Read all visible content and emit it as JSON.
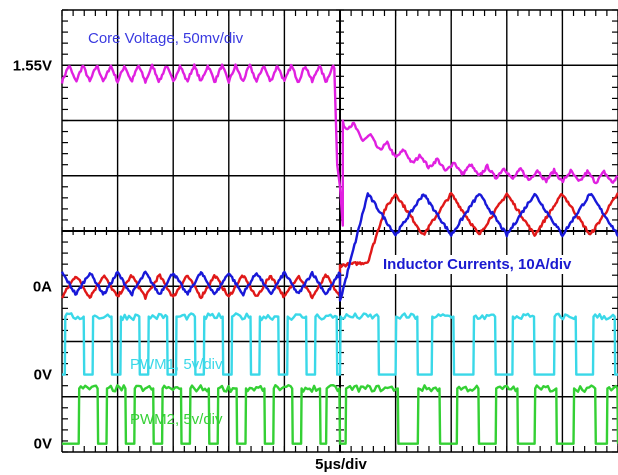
{
  "chart_data": {
    "type": "line",
    "title": "",
    "xlabel": "5μs/div",
    "ylabel": "",
    "grid": true,
    "divisions": {
      "x": 10,
      "y": 8
    },
    "xlim": [
      0,
      10
    ],
    "y_labels": [
      {
        "text": "1.55V",
        "div": 7
      },
      {
        "text": "0A",
        "div": 3
      },
      {
        "text": "0V",
        "div": 1.4
      },
      {
        "text": "0V",
        "div": 0.15
      }
    ],
    "annotations": [
      {
        "text": "Core Voltage, 50mv/div",
        "series": "Core Voltage",
        "color": "#3a3ae0"
      },
      {
        "text": "Inductor Currents, 10A/div",
        "series": "Inductor Current 2",
        "color": "#1a1ad0"
      },
      {
        "text": "PWM1, 5v/div",
        "series": "PWM1",
        "color": "#3ad8e8"
      },
      {
        "text": "PWM2, 5v/div",
        "series": "PWM2",
        "color": "#34d034"
      }
    ],
    "transient_at_div": 5,
    "series": [
      {
        "name": "Core Voltage",
        "units": "div",
        "color": "#e020e0",
        "segments": [
          {
            "x_start": 0.0,
            "x_end": 4.9,
            "mean": 6.85,
            "ripple_pp": 0.3,
            "period": 0.25
          },
          {
            "x_start": 4.9,
            "x_end": 5.05,
            "points": [
              [
                4.9,
                6.9
              ],
              [
                4.95,
                5.2
              ],
              [
                5.0,
                4.8
              ],
              [
                5.05,
                4.1
              ]
            ]
          },
          {
            "x_start": 5.05,
            "x_end": 10.0,
            "settle_from": 6.0,
            "settle_to": 4.95,
            "tau": 1.2,
            "ripple_pp": 0.2,
            "period": 0.3
          }
        ]
      },
      {
        "name": "Inductor Current 1",
        "units": "div",
        "color": "#e01818",
        "segments": [
          {
            "x_start": 0.0,
            "x_end": 5.0,
            "mean": 3.0,
            "ripple_pp": 0.4,
            "period": 0.5,
            "phase": 0.0
          },
          {
            "x_start": 5.0,
            "x_end": 10.0,
            "ramp_from": 3.0,
            "ramp_to": 4.3,
            "ramp_len": 0.8,
            "ripple_pp": 0.75,
            "period": 1.0,
            "phase": 0.5
          }
        ]
      },
      {
        "name": "Inductor Current 2",
        "units": "div",
        "color": "#1818d8",
        "segments": [
          {
            "x_start": 0.0,
            "x_end": 5.0,
            "mean": 3.05,
            "ripple_pp": 0.4,
            "period": 0.5,
            "phase": 0.5
          },
          {
            "x_start": 5.0,
            "x_end": 10.0,
            "ramp_from": 3.1,
            "ramp_to": 4.3,
            "ramp_len": 0.5,
            "ripple_pp": 0.75,
            "period": 1.0,
            "phase": 0.0
          }
        ]
      },
      {
        "name": "PWM1",
        "units": "div",
        "color": "#3ad8e8",
        "low": 1.4,
        "high": 2.45,
        "high_intervals": [
          [
            0.05,
            0.4
          ],
          [
            0.55,
            0.9
          ],
          [
            1.05,
            1.4
          ],
          [
            1.55,
            1.9
          ],
          [
            2.05,
            2.4
          ],
          [
            2.55,
            2.9
          ],
          [
            3.05,
            3.4
          ],
          [
            3.55,
            3.9
          ],
          [
            4.05,
            4.4
          ],
          [
            4.55,
            4.95
          ],
          [
            5.0,
            5.7
          ],
          [
            6.0,
            6.4
          ],
          [
            6.65,
            7.05
          ],
          [
            7.4,
            7.8
          ],
          [
            8.1,
            8.5
          ],
          [
            8.85,
            9.25
          ],
          [
            9.55,
            9.95
          ]
        ]
      },
      {
        "name": "PWM2",
        "units": "div",
        "color": "#34d034",
        "low": 0.15,
        "high": 1.15,
        "high_intervals": [
          [
            0.3,
            0.65
          ],
          [
            0.8,
            1.15
          ],
          [
            1.3,
            1.65
          ],
          [
            1.8,
            2.15
          ],
          [
            2.3,
            2.65
          ],
          [
            2.8,
            3.15
          ],
          [
            3.3,
            3.65
          ],
          [
            3.8,
            4.15
          ],
          [
            4.3,
            4.65
          ],
          [
            4.75,
            5.0
          ],
          [
            5.1,
            6.05
          ],
          [
            6.4,
            6.8
          ],
          [
            7.1,
            7.5
          ],
          [
            7.8,
            8.2
          ],
          [
            8.5,
            8.9
          ],
          [
            9.2,
            9.6
          ],
          [
            9.8,
            10.0
          ]
        ]
      }
    ]
  }
}
